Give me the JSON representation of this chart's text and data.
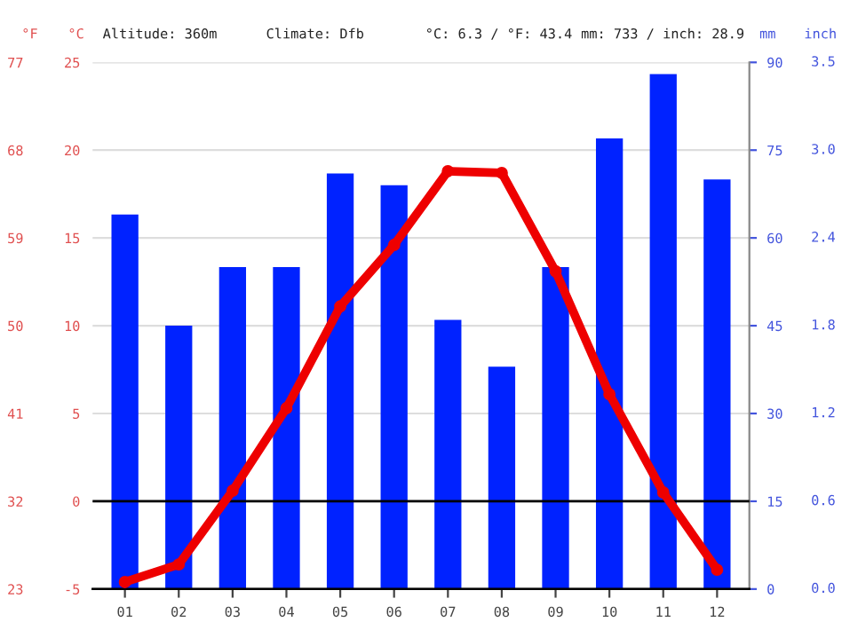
{
  "chart_data": {
    "type": "bar",
    "categories": [
      "01",
      "02",
      "03",
      "04",
      "05",
      "06",
      "07",
      "08",
      "09",
      "10",
      "11",
      "12"
    ],
    "series": [
      {
        "axis": "y2",
        "color": "#0022ff",
        "values": [
          64,
          45,
          55,
          55,
          71,
          69,
          46,
          38,
          55,
          77,
          88,
          70
        ]
      },
      {
        "type": "line",
        "axis": "y",
        "color": "#ee0000",
        "marker": "circle",
        "values": [
          -4.6,
          -3.6,
          0.6,
          5.3,
          11.1,
          14.6,
          18.8,
          18.7,
          13.1,
          6.1,
          0.5,
          -3.9
        ]
      }
    ],
    "ylabel": "°C",
    "y3label": "°F",
    "y2label": "mm",
    "ylim": [
      -5,
      25
    ],
    "yticks": [
      -5,
      0,
      5,
      10,
      15,
      20,
      25
    ],
    "y3lim": [
      23,
      77
    ],
    "y3ticks": [
      23,
      32,
      41,
      50,
      59,
      68,
      77
    ],
    "y2lim": [
      0,
      90
    ],
    "y2ticks": [
      0,
      15,
      30,
      45,
      60,
      75,
      90
    ],
    "ref_lines": [
      {
        "axis": "y",
        "value": 0,
        "color": "#000000"
      }
    ],
    "annotations": [
      "Altitude: 360m",
      "Climate: Dfb",
      "°C: 6.3 / °F: 43.4",
      "mm: 733 / inch: 28.9",
      "inch",
      "0.0",
      "0.6",
      "1.2",
      "1.8",
      "2.4",
      "3.0",
      "3.5"
    ],
    "grid": "y",
    "legend": false
  }
}
